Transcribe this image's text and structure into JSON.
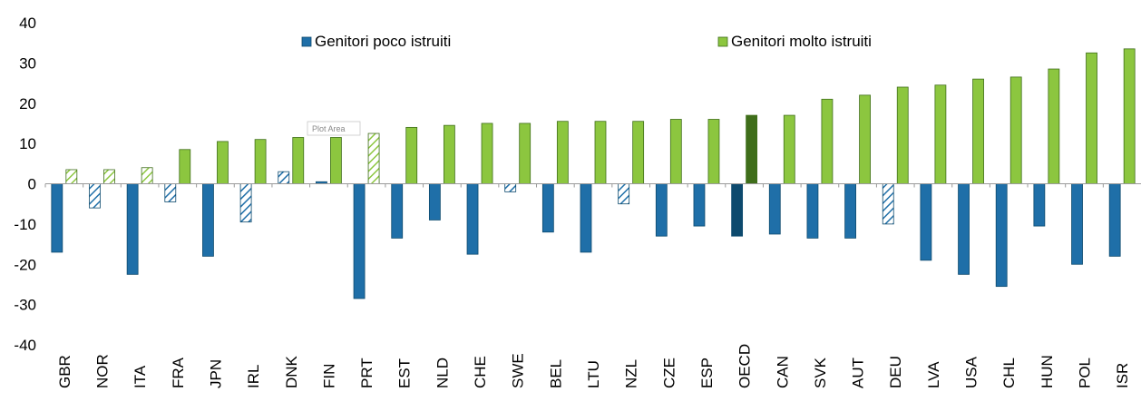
{
  "chart_data": {
    "type": "bar",
    "categories": [
      "GBR",
      "NOR",
      "ITA",
      "FRA",
      "JPN",
      "IRL",
      "DNK",
      "FIN",
      "PRT",
      "EST",
      "NLD",
      "CHE",
      "SWE",
      "BEL",
      "LTU",
      "NZL",
      "CZE",
      "ESP",
      "OECD",
      "CAN",
      "SVK",
      "AUT",
      "DEU",
      "LVA",
      "USA",
      "CHL",
      "HUN",
      "POL",
      "ISR"
    ],
    "series": [
      {
        "name": "Genitori poco istruiti",
        "values": [
          -17,
          -6,
          -22.5,
          -4.5,
          -18,
          -9.5,
          3,
          0.5,
          -28.5,
          -13.5,
          -9,
          -17.5,
          -2,
          -12,
          -17,
          -5,
          -13,
          -10.5,
          -13,
          -12.5,
          -13.5,
          -13.5,
          -10,
          -19,
          -22.5,
          -25.5,
          -10.5,
          -20,
          -18
        ],
        "not_significant": [
          false,
          true,
          false,
          true,
          false,
          true,
          true,
          false,
          false,
          false,
          false,
          false,
          true,
          false,
          false,
          true,
          false,
          false,
          false,
          false,
          false,
          false,
          true,
          false,
          false,
          false,
          false,
          false,
          false
        ],
        "color": "#1f6fa8",
        "highlight_color": "#0d4a6e"
      },
      {
        "name": "Genitori molto istruiti",
        "values": [
          3.5,
          3.5,
          4,
          8.5,
          10.5,
          11,
          11.5,
          11.5,
          12.5,
          14,
          14.5,
          15,
          15,
          15.5,
          15.5,
          15.5,
          16,
          16,
          17,
          17,
          21,
          22,
          24,
          24.5,
          26,
          26.5,
          28.5,
          32.5,
          33.5
        ],
        "not_significant": [
          true,
          true,
          true,
          false,
          false,
          false,
          false,
          false,
          true,
          false,
          false,
          false,
          false,
          false,
          false,
          false,
          false,
          false,
          false,
          false,
          false,
          false,
          false,
          false,
          false,
          false,
          false,
          false,
          false
        ],
        "color": "#8cc63f",
        "highlight_color": "#3f6e1a"
      }
    ],
    "highlight_category": "OECD",
    "ylim": [
      -40,
      40
    ],
    "yticks": [
      -40,
      -30,
      -20,
      -10,
      0,
      10,
      20,
      30,
      40
    ],
    "grid": false,
    "legend": "top"
  },
  "plot_area_tag": "Plot Area"
}
